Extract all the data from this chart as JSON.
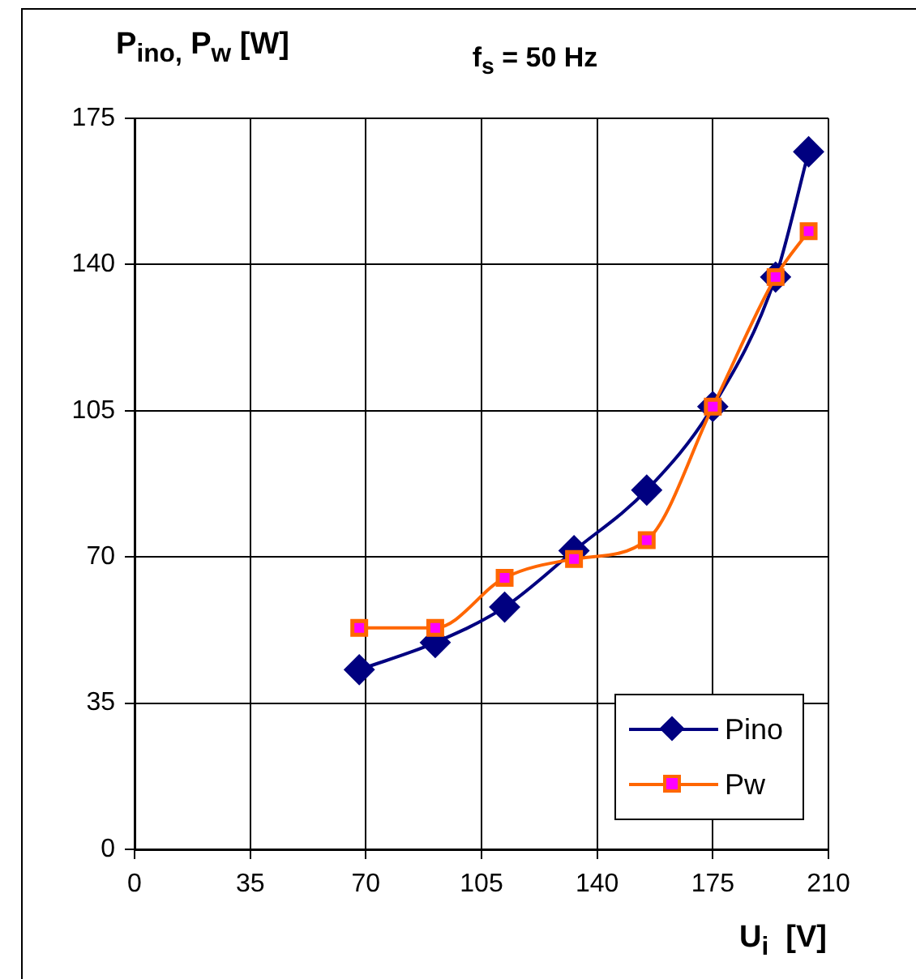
{
  "chart_data": {
    "type": "line",
    "title": "f$_{s}$ = 50 Hz",
    "xlabel": "U$_{i}$  [V]",
    "ylabel": "P$_{ino,}$ P$_{w}$ [W]",
    "xlim": [
      0,
      210
    ],
    "xticks": [
      0,
      35,
      70,
      105,
      140,
      175,
      210
    ],
    "ylim": [
      0,
      175
    ],
    "yticks": [
      0,
      35,
      70,
      105,
      140,
      175
    ],
    "grid": true,
    "legend": "bottom right",
    "line_style": "solid",
    "series": [
      {
        "name": "Pino",
        "color": "#000080",
        "marker": "diamond",
        "x": [
          68,
          91,
          112,
          133,
          155,
          175,
          194,
          204
        ],
        "values": [
          43,
          49.5,
          58,
          71.5,
          86,
          106,
          137,
          167
        ]
      },
      {
        "name": "Pw",
        "color": "#ff6600",
        "marker": "square",
        "x": [
          68,
          91,
          112,
          133,
          155,
          175,
          194,
          204
        ],
        "values": [
          53,
          53,
          65,
          69.5,
          74,
          106,
          137,
          148
        ]
      }
    ]
  }
}
